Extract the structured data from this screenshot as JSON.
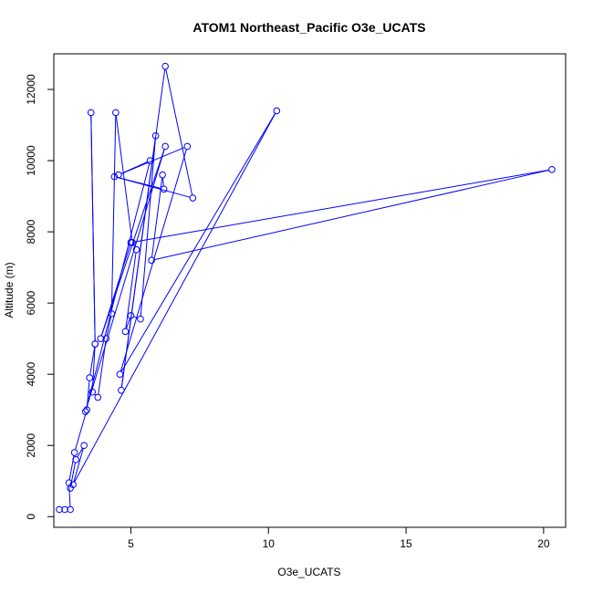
{
  "chart_data": {
    "type": "line",
    "title": "ATOM1 Northeast_Pacific O3e_UCATS",
    "xlabel": "O3e_UCATS",
    "ylabel": "Altitude (m)",
    "xlim": [
      2.2,
      20.8
    ],
    "ylim": [
      -300,
      13000
    ],
    "x_ticks": [
      5,
      10,
      15,
      20
    ],
    "y_ticks": [
      0,
      2000,
      4000,
      6000,
      8000,
      10000,
      12000
    ],
    "grid": false,
    "legend": "none",
    "series": [
      {
        "color": "#0000ff",
        "marker": "open-circle",
        "points": [
          [
            2.4,
            200
          ],
          [
            2.6,
            200
          ],
          [
            2.8,
            200
          ],
          [
            2.75,
            950
          ],
          [
            2.95,
            1800
          ],
          [
            3.4,
            3000
          ],
          [
            3.5,
            3900
          ],
          [
            3.7,
            4850
          ],
          [
            3.55,
            11350
          ],
          [
            3.7,
            4850
          ],
          [
            3.6,
            3500
          ],
          [
            3.8,
            3350
          ],
          [
            4.1,
            5000
          ],
          [
            4.3,
            5700
          ],
          [
            4.45,
            11350
          ],
          [
            5.05,
            7700
          ],
          [
            5.2,
            7500
          ],
          [
            4.8,
            5200
          ],
          [
            5.0,
            5650
          ],
          [
            5.35,
            5550
          ],
          [
            5.9,
            10700
          ],
          [
            4.65,
            3550
          ],
          [
            6.25,
            12650
          ],
          [
            7.25,
            8950
          ],
          [
            4.4,
            9550
          ],
          [
            6.2,
            9200
          ],
          [
            6.15,
            9600
          ],
          [
            5.75,
            7200
          ],
          [
            20.3,
            9750
          ],
          [
            5.0,
            7700
          ],
          [
            3.9,
            5000
          ],
          [
            6.25,
            10400
          ],
          [
            3.35,
            2950
          ],
          [
            5.7,
            10000
          ],
          [
            4.55,
            9600
          ],
          [
            7.05,
            10400
          ],
          [
            4.6,
            4000
          ],
          [
            10.3,
            11400
          ],
          [
            2.9,
            900
          ],
          [
            3.3,
            2000
          ],
          [
            3.0,
            1600
          ],
          [
            2.8,
            800
          ]
        ]
      }
    ]
  }
}
